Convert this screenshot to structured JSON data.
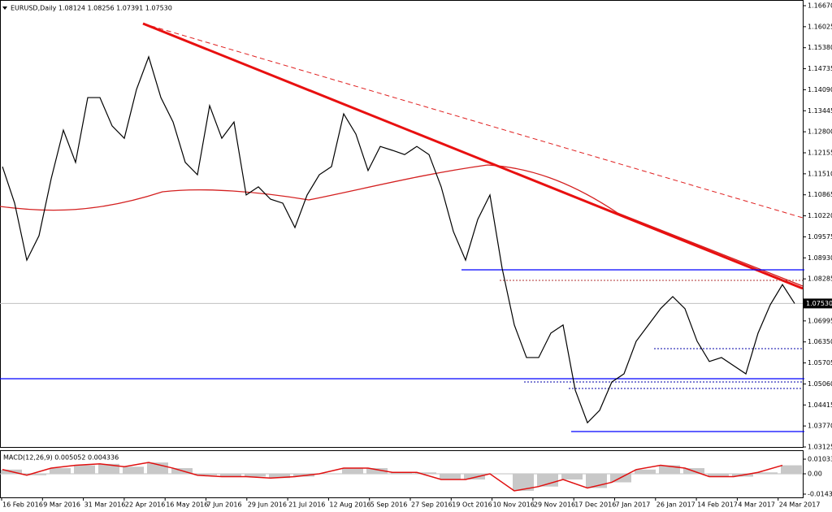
{
  "header": "EURUSD,Daily  1.08124 1.08256 1.07391 1.07530",
  "price": {
    "ylim": [
      1.03125,
      1.1667
    ],
    "yticks": [
      {
        "value": 1.1667,
        "label": "1.16670"
      },
      {
        "value": 1.16025,
        "label": "1.16025"
      },
      {
        "value": 1.1538,
        "label": "1.15380"
      },
      {
        "value": 1.14735,
        "label": "1.14735"
      },
      {
        "value": 1.1409,
        "label": "1.14090"
      },
      {
        "value": 1.13445,
        "label": "1.13445"
      },
      {
        "value": 1.128,
        "label": "1.12800"
      },
      {
        "value": 1.12155,
        "label": "1.12155"
      },
      {
        "value": 1.1151,
        "label": "1.11510"
      },
      {
        "value": 1.10865,
        "label": "1.10865"
      },
      {
        "value": 1.1022,
        "label": "1.10220"
      },
      {
        "value": 1.09575,
        "label": "1.09575"
      },
      {
        "value": 1.0893,
        "label": "1.08930"
      },
      {
        "value": 1.08285,
        "label": "1.08285"
      },
      {
        "value": 1.06995,
        "label": "1.06995"
      },
      {
        "value": 1.0635,
        "label": "1.06350"
      },
      {
        "value": 1.05705,
        "label": "1.05705"
      },
      {
        "value": 1.0506,
        "label": "1.05060"
      },
      {
        "value": 1.04415,
        "label": "1.04415"
      },
      {
        "value": 1.0377,
        "label": "1.03770"
      },
      {
        "value": 1.03125,
        "label": "1.03125"
      }
    ],
    "current": {
      "value": 1.0753,
      "label": "1.07530"
    },
    "closes": [
      1.1173,
      1.1061,
      1.0886,
      1.0961,
      1.1136,
      1.1285,
      1.1186,
      1.1385,
      1.1385,
      1.1298,
      1.126,
      1.141,
      1.151,
      1.1385,
      1.131,
      1.1186,
      1.1148,
      1.136,
      1.126,
      1.131,
      1.1086,
      1.1111,
      1.1073,
      1.1061,
      1.0986,
      1.1086,
      1.1148,
      1.1173,
      1.1335,
      1.1273,
      1.1161,
      1.1235,
      1.1223,
      1.121,
      1.1235,
      1.121,
      1.1111,
      1.0974,
      1.0886,
      1.1011,
      1.1086,
      1.0861,
      1.0687,
      1.0587,
      1.0587,
      1.0662,
      1.0687,
      1.0487,
      1.0387,
      1.0425,
      1.0512,
      1.0537,
      1.0637,
      1.0687,
      1.0737,
      1.0774,
      1.0737,
      1.0637,
      1.0575,
      1.0587,
      1.0562,
      1.0537,
      1.0662,
      1.0749,
      1.0811,
      1.0753
    ]
  },
  "macd": {
    "label": "MACD(12,26,9) 0.005052 0.004336",
    "ylim": [
      -0.014335,
      0.010335
    ],
    "yticks": [
      {
        "value": 0.010335,
        "label": "0.010335"
      },
      {
        "value": 0,
        "label": "0.00"
      },
      {
        "value": -0.014335,
        "label": "-0.014335"
      }
    ],
    "signal": [
      0.003,
      -0.001,
      0.004,
      0.006,
      0.007,
      0.005,
      0.008,
      0.004,
      -0.001,
      -0.002,
      -0.002,
      -0.003,
      -0.002,
      0,
      0.004,
      0.004,
      0.001,
      0.001,
      -0.004,
      -0.004,
      0,
      -0.012,
      -0.009,
      -0.004,
      -0.01,
      -0.006,
      0.003,
      0.006,
      0.004,
      -0.002,
      -0.002,
      0.001,
      0.006
    ]
  },
  "dates": [
    "16 Feb 2016",
    "9 Mar 2016",
    "31 Mar 2016",
    "22 Apr 2016",
    "16 May 2016",
    "7 Jun 2016",
    "29 Jun 2016",
    "21 Jul 2016",
    "12 Aug 2016",
    "5 Sep 2016",
    "27 Sep 2016",
    "19 Oct 2016",
    "10 Nov 2016",
    "29 Nov 2016",
    "17 Dec 2016",
    "7 Jan 2017",
    "26 Jan 2017",
    "14 Feb 2017",
    "4 Mar 2017",
    "24 Mar 2017"
  ]
}
